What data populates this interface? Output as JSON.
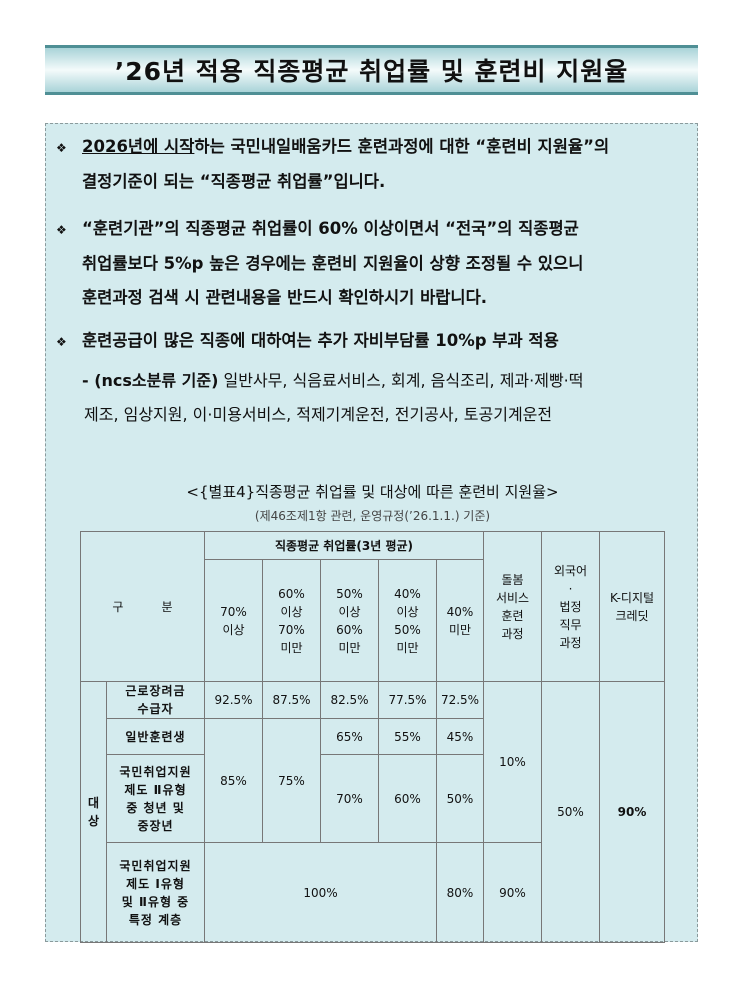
{
  "title": "’26년 적용 직종평균 취업률 및 훈련비 지원율",
  "bullets": [
    {
      "underlined": "2026년에 시작",
      "line1_rest": "하는 국민내일배움카드 훈련과정에 대한 “훈련비 지원율”의",
      "line2": "결정기준이 되는 “직종평균 취업률”입니다."
    },
    {
      "line1": "“훈련기관”의 직종평균 취업률이 60% 이상이면서 “전국”의 직종평균",
      "line2": "취업률보다 5%p 높은 경우에는 훈련비 지원율이 상향 조정될 수 있으니",
      "line3": "훈련과정 검색 시 관련내용을 반드시 확인하시기 바랍니다."
    },
    {
      "line1": "훈련공급이 많은 직종에 대하여는 추가 자비부담률 10%p 부과 적용"
    }
  ],
  "bullet_mark": "❖",
  "sub": {
    "prefix": "- (ncs소분류 기준)",
    "line1": "일반사무, 식음료서비스, 회계, 음식조리, 제과·제빵·떡",
    "line2": "제조, 임상지원, 이·미용서비스, 적제기계운전, 전기공사, 토공기계운전"
  },
  "table": {
    "caption": "<{별표4}직종평균 취업률 및 대상에 따른 훈련비 지원율>",
    "subcaption": "(제46조제1항 관련, 운영규정(’26.1.1.) 기준)",
    "header": {
      "category": "구          분",
      "rate_group": "직종평균 취업률(3년 평균)",
      "rate_cols": [
        "70%\n이상",
        "60%\n이상\n70%\n미만",
        "50%\n이상\n60%\n미만",
        "40%\n이상\n50%\n미만",
        "40%\n미만"
      ],
      "care": "돌봄\n서비스\n훈련\n과정",
      "foreign": "외국어\n·\n법정\n직무\n과정",
      "kdigital": "K-디지털\n크레딧"
    },
    "target_label": "대\n상",
    "rows": {
      "r1": {
        "label": "근로장려금\n수급자",
        "values": [
          "92.5%",
          "87.5%",
          "82.5%",
          "77.5%",
          "72.5%"
        ]
      },
      "r2": {
        "label": "일반훈련생",
        "values": [
          "85%",
          "75%",
          "65%",
          "55%",
          "45%"
        ]
      },
      "r3": {
        "label": "국민취업지원\n제도 Ⅱ유형\n중 청년 및\n중장년",
        "values": [
          "70%",
          "60%",
          "50%"
        ]
      },
      "r4": {
        "label": "국민취업지원\n제도 Ⅰ유형\n및 Ⅱ유형 중\n특정 계층",
        "value_merged": "100%",
        "under40": "80%",
        "care": "90%"
      },
      "care_merged": "10%",
      "foreign_merged": "50%",
      "kdigital_merged": "90%"
    }
  }
}
